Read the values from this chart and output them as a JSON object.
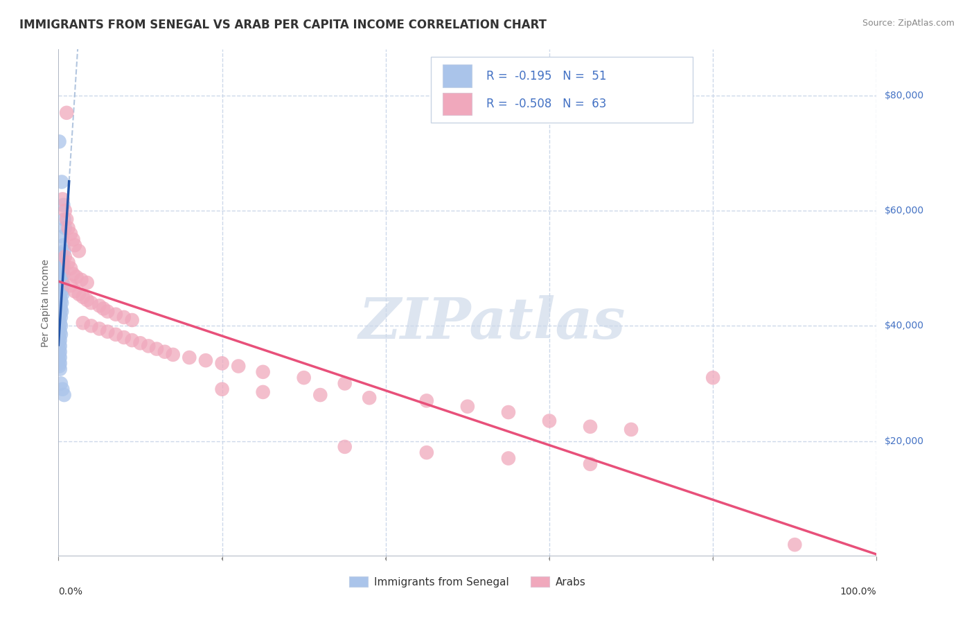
{
  "title": "IMMIGRANTS FROM SENEGAL VS ARAB PER CAPITA INCOME CORRELATION CHART",
  "source": "Source: ZipAtlas.com",
  "ylabel": "Per Capita Income",
  "legend": {
    "blue_r": "-0.195",
    "blue_n": "51",
    "pink_r": "-0.508",
    "pink_n": "63"
  },
  "blue_color": "#aac4ea",
  "pink_color": "#f0a8bc",
  "blue_line_color": "#2255aa",
  "pink_line_color": "#e8507a",
  "dashed_line_color": "#a0b8d8",
  "background_color": "#ffffff",
  "grid_color": "#ccd8ea",
  "watermark": "ZIPatlas",
  "senegal_points": [
    [
      0.001,
      72000
    ],
    [
      0.004,
      65000
    ],
    [
      0.006,
      61000
    ],
    [
      0.007,
      58500
    ],
    [
      0.008,
      57000
    ],
    [
      0.005,
      55500
    ],
    [
      0.006,
      54000
    ],
    [
      0.007,
      53000
    ],
    [
      0.003,
      52500
    ],
    [
      0.004,
      51500
    ],
    [
      0.005,
      51000
    ],
    [
      0.006,
      50500
    ],
    [
      0.004,
      50000
    ],
    [
      0.005,
      49500
    ],
    [
      0.006,
      49000
    ],
    [
      0.003,
      48500
    ],
    [
      0.004,
      48000
    ],
    [
      0.005,
      47500
    ],
    [
      0.006,
      47000
    ],
    [
      0.003,
      46500
    ],
    [
      0.004,
      46000
    ],
    [
      0.005,
      45500
    ],
    [
      0.002,
      45000
    ],
    [
      0.003,
      44500
    ],
    [
      0.004,
      44000
    ],
    [
      0.002,
      43500
    ],
    [
      0.003,
      43000
    ],
    [
      0.004,
      42500
    ],
    [
      0.002,
      42000
    ],
    [
      0.003,
      41500
    ],
    [
      0.001,
      41000
    ],
    [
      0.002,
      40500
    ],
    [
      0.003,
      40000
    ],
    [
      0.001,
      39500
    ],
    [
      0.002,
      39000
    ],
    [
      0.003,
      38500
    ],
    [
      0.001,
      38000
    ],
    [
      0.002,
      37500
    ],
    [
      0.001,
      37000
    ],
    [
      0.002,
      36500
    ],
    [
      0.001,
      36000
    ],
    [
      0.002,
      35500
    ],
    [
      0.001,
      35000
    ],
    [
      0.002,
      34500
    ],
    [
      0.001,
      34000
    ],
    [
      0.002,
      33500
    ],
    [
      0.001,
      33000
    ],
    [
      0.002,
      32500
    ],
    [
      0.003,
      30000
    ],
    [
      0.005,
      29000
    ],
    [
      0.007,
      28000
    ]
  ],
  "arab_points": [
    [
      0.01,
      77000
    ],
    [
      0.005,
      62000
    ],
    [
      0.008,
      60000
    ],
    [
      0.01,
      58500
    ],
    [
      0.012,
      57000
    ],
    [
      0.015,
      56000
    ],
    [
      0.018,
      55000
    ],
    [
      0.02,
      54000
    ],
    [
      0.025,
      53000
    ],
    [
      0.008,
      52000
    ],
    [
      0.012,
      51000
    ],
    [
      0.015,
      50000
    ],
    [
      0.018,
      49000
    ],
    [
      0.022,
      48500
    ],
    [
      0.028,
      48000
    ],
    [
      0.035,
      47500
    ],
    [
      0.015,
      47000
    ],
    [
      0.02,
      46000
    ],
    [
      0.025,
      45500
    ],
    [
      0.03,
      45000
    ],
    [
      0.035,
      44500
    ],
    [
      0.04,
      44000
    ],
    [
      0.05,
      43500
    ],
    [
      0.055,
      43000
    ],
    [
      0.06,
      42500
    ],
    [
      0.07,
      42000
    ],
    [
      0.08,
      41500
    ],
    [
      0.09,
      41000
    ],
    [
      0.03,
      40500
    ],
    [
      0.04,
      40000
    ],
    [
      0.05,
      39500
    ],
    [
      0.06,
      39000
    ],
    [
      0.07,
      38500
    ],
    [
      0.08,
      38000
    ],
    [
      0.09,
      37500
    ],
    [
      0.1,
      37000
    ],
    [
      0.11,
      36500
    ],
    [
      0.12,
      36000
    ],
    [
      0.13,
      35500
    ],
    [
      0.14,
      35000
    ],
    [
      0.16,
      34500
    ],
    [
      0.18,
      34000
    ],
    [
      0.2,
      33500
    ],
    [
      0.22,
      33000
    ],
    [
      0.25,
      32000
    ],
    [
      0.3,
      31000
    ],
    [
      0.35,
      30000
    ],
    [
      0.2,
      29000
    ],
    [
      0.25,
      28500
    ],
    [
      0.32,
      28000
    ],
    [
      0.38,
      27500
    ],
    [
      0.45,
      27000
    ],
    [
      0.5,
      26000
    ],
    [
      0.55,
      25000
    ],
    [
      0.6,
      23500
    ],
    [
      0.65,
      22500
    ],
    [
      0.7,
      22000
    ],
    [
      0.8,
      31000
    ],
    [
      0.35,
      19000
    ],
    [
      0.45,
      18000
    ],
    [
      0.55,
      17000
    ],
    [
      0.65,
      16000
    ],
    [
      0.9,
      2000
    ]
  ],
  "title_fontsize": 12,
  "axis_label_fontsize": 10,
  "tick_fontsize": 10,
  "legend_fontsize": 12
}
